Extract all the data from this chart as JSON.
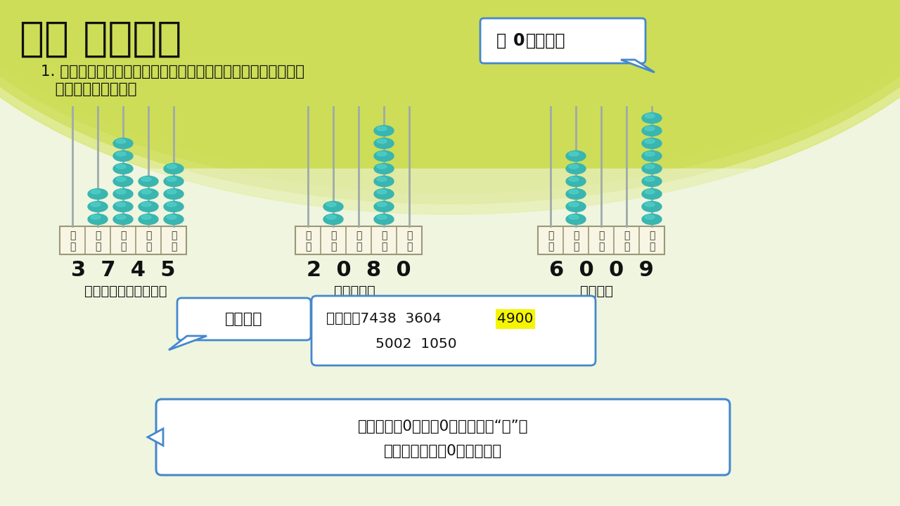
{
  "title": "二、 探究新知",
  "question_line1": "1. 先说出计数器上的数各是由几个千、几个百、几个十和几个一",
  "question_line2": "   组成的，再读出来。",
  "abacus_centers": [
    175,
    510,
    855
  ],
  "abacus_beads": [
    [
      0,
      3,
      7,
      4,
      5
    ],
    [
      0,
      2,
      0,
      8,
      0
    ],
    [
      0,
      6,
      0,
      0,
      9
    ]
  ],
  "abacus_col_labels": [
    [
      "万",
      "千",
      "百",
      "十",
      "个"
    ],
    [
      "万",
      "千",
      "百",
      "十",
      "个"
    ],
    [
      "万",
      "千",
      "百",
      "十",
      "个"
    ]
  ],
  "abacus_sublabels": [
    [
      "位",
      "位",
      "位",
      "位",
      "位"
    ],
    [
      "位",
      "位",
      "位",
      "位",
      "位"
    ],
    [
      "位",
      "位",
      "位",
      "位",
      "位"
    ]
  ],
  "abacus_numbers": [
    "3  7  4  5",
    "2  0  8  0",
    "6  0  0  9"
  ],
  "abacus_readings": [
    "读作：三千七百四十五",
    "二千零八十",
    "六千零九"
  ],
  "speech_bubble_text1": "有",
  "speech_bubble_text2": "0",
  "speech_bubble_text3": "怎样读？",
  "bubble1_text": "说组成。",
  "bubble2_prefix": "读一读：7438  3604  ",
  "bubble2_highlight": "4900",
  "bubble2_line2": "           5002  1050",
  "bubble3_line1": "中间有一个0或两个0，只读一个“零”；",
  "bubble3_line2": "末尾不管有几个0，都不读。",
  "bead_color": "#3ab5b0",
  "bead_highlight": "#55d8d0",
  "rod_color": "#9eaaaa",
  "box_fill": "#f8f5e4",
  "box_border": "#999977",
  "bubble_border": "#4488cc",
  "bubble_fill": "#ffffff",
  "highlight_yellow": "#f5f500",
  "title_color": "#111111",
  "text_color": "#111111",
  "bg_light": "#f0f5e0"
}
